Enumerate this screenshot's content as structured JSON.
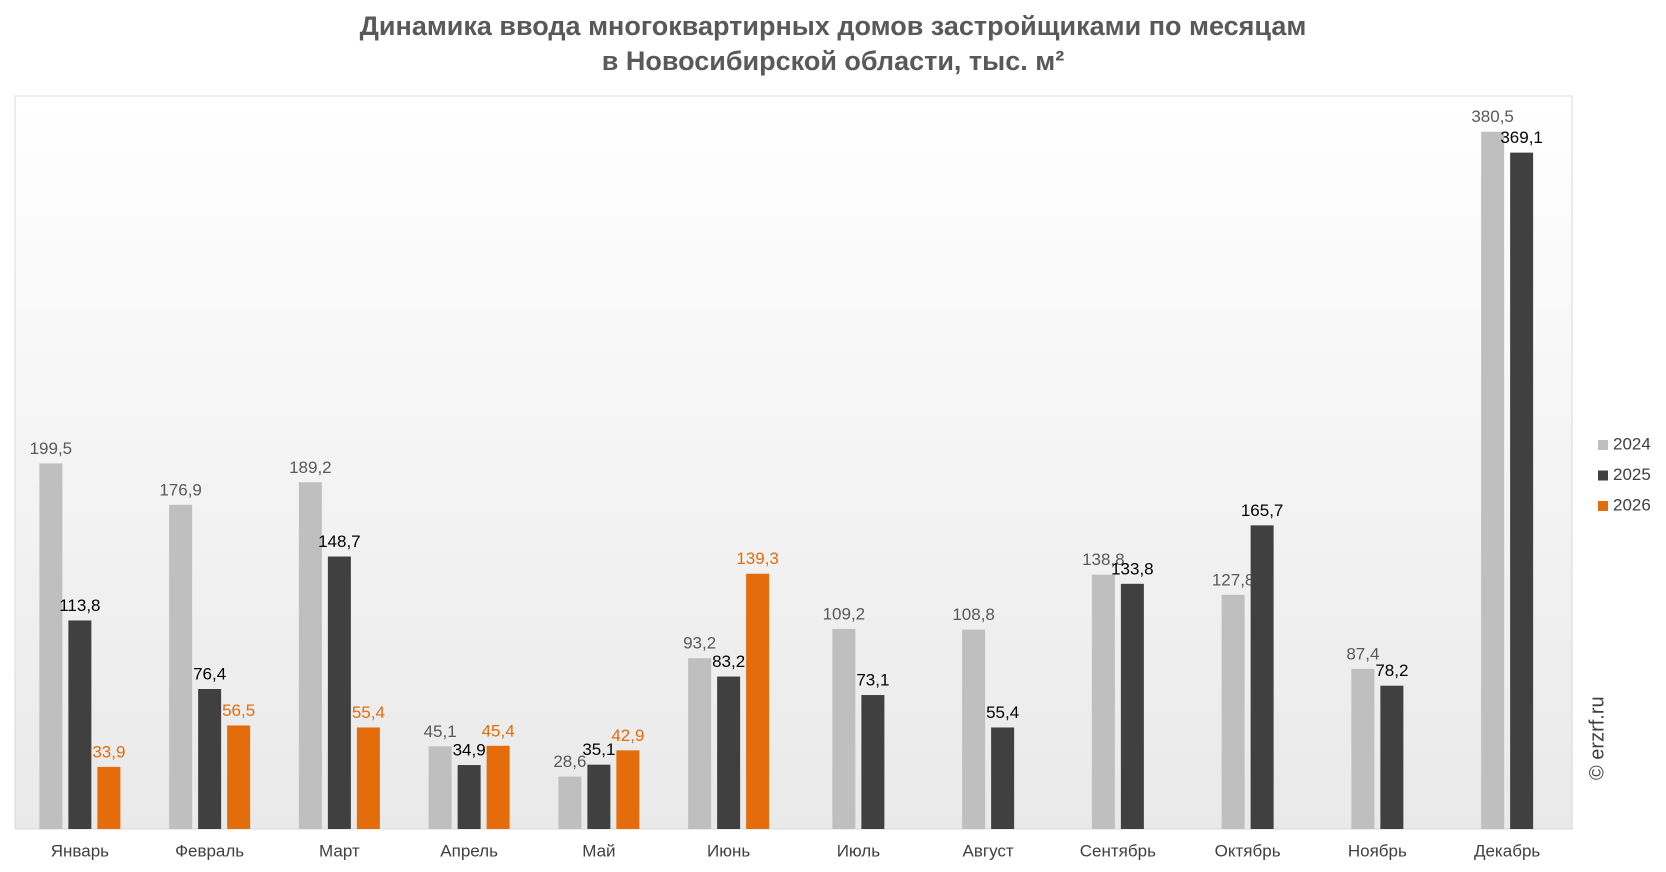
{
  "chart_data": {
    "type": "bar",
    "title": "Динамика ввода многоквартирных домов застройщиками по месяцам",
    "subtitle": "в Новосибирской области, тыс. м²",
    "watermark": "© erzrf.ru",
    "categories": [
      "Январь",
      "Февраль",
      "Март",
      "Апрель",
      "Май",
      "Июнь",
      "Июль",
      "Август",
      "Сентябрь",
      "Октябрь",
      "Ноябрь",
      "Декабрь"
    ],
    "ylim": [
      0,
      400
    ],
    "legend": "right",
    "series": [
      {
        "name": "2024",
        "color": "#bfbfbf",
        "label_color": "#595959",
        "values": [
          199.5,
          176.9,
          189.2,
          45.1,
          28.6,
          93.2,
          109.2,
          108.8,
          138.8,
          127.8,
          87.4,
          380.5
        ],
        "value_labels": [
          "199,5",
          "176,9",
          "189,2",
          "45,1",
          "28,6",
          "93,2",
          "109,2",
          "108,8",
          "138,8",
          "127,8",
          "87,4",
          "380,5"
        ]
      },
      {
        "name": "2025",
        "color": "#404040",
        "label_color": "#000000",
        "values": [
          113.8,
          76.4,
          148.7,
          34.9,
          35.1,
          83.2,
          73.1,
          55.4,
          133.8,
          165.7,
          78.2,
          369.1
        ],
        "value_labels": [
          "113,8",
          "76,4",
          "148,7",
          "34,9",
          "35,1",
          "83,2",
          "73,1",
          "55,4",
          "133,8",
          "165,7",
          "78,2",
          "369,1"
        ]
      },
      {
        "name": "2026",
        "color": "#e46c0a",
        "label_color": "#e46c0a",
        "values": [
          33.9,
          56.5,
          55.4,
          45.4,
          42.9,
          139.3,
          null,
          null,
          null,
          null,
          null,
          null
        ],
        "value_labels": [
          "33,9",
          "56,5",
          "55,4",
          "45,4",
          "42,9",
          "139,3",
          null,
          null,
          null,
          null,
          null,
          null
        ]
      }
    ]
  }
}
